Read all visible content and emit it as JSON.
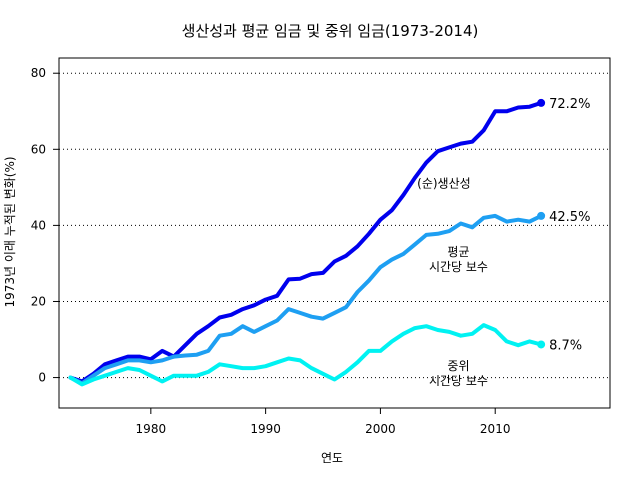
{
  "chart_data": {
    "type": "line",
    "title": "생산성과 평균 임금 및 중위 임금(1973-2014)",
    "xlabel": "연도",
    "ylabel": "1973년 이래 누적된 변화(%)",
    "xlim": [
      1972,
      2020
    ],
    "ylim": [
      -8,
      84
    ],
    "x_ticks": [
      1980,
      1990,
      2000,
      2010
    ],
    "y_ticks": [
      0,
      20,
      40,
      60,
      80
    ],
    "grid": "horizontal-dotted",
    "x": [
      1973,
      1974,
      1975,
      1976,
      1977,
      1978,
      1979,
      1980,
      1981,
      1982,
      1983,
      1984,
      1985,
      1986,
      1987,
      1988,
      1989,
      1990,
      1991,
      1992,
      1993,
      1994,
      1995,
      1996,
      1997,
      1998,
      1999,
      2000,
      2001,
      2002,
      2003,
      2004,
      2005,
      2006,
      2007,
      2008,
      2009,
      2010,
      2011,
      2012,
      2013,
      2014
    ],
    "series": [
      {
        "label_lines": [
          "(순)생산성"
        ],
        "end_label": "72.2%",
        "color": "#0000EE",
        "values": [
          0,
          -1.0,
          1.0,
          3.5,
          4.5,
          5.5,
          5.5,
          4.8,
          7.0,
          5.5,
          8.5,
          11.5,
          13.5,
          15.8,
          16.5,
          18.0,
          19.0,
          20.5,
          21.5,
          25.8,
          26.0,
          27.2,
          27.5,
          30.5,
          32.0,
          34.5,
          37.8,
          41.5,
          44.0,
          48.0,
          52.5,
          56.5,
          59.5,
          60.5,
          61.5,
          62.0,
          65.0,
          70.0,
          70.0,
          71.0,
          71.2,
          72.2
        ]
      },
      {
        "label_lines": [
          "평균",
          "시간당 보수"
        ],
        "end_label": "42.5%",
        "color": "#1E9FF2",
        "values": [
          0,
          -1.5,
          0.5,
          2.5,
          3.5,
          4.5,
          4.5,
          4.0,
          4.5,
          5.5,
          5.8,
          6.0,
          7.0,
          11.0,
          11.5,
          13.5,
          12.0,
          13.5,
          15.0,
          18.0,
          17.0,
          16.0,
          15.5,
          17.0,
          18.5,
          22.5,
          25.5,
          29.0,
          31.0,
          32.5,
          35.0,
          37.5,
          37.8,
          38.5,
          40.5,
          39.5,
          42.0,
          42.5,
          41.0,
          41.5,
          41.0,
          42.5
        ]
      },
      {
        "label_lines": [
          "중위",
          "시간당 보수"
        ],
        "end_label": "8.7%",
        "color": "#00F2F2",
        "values": [
          0,
          -1.8,
          -0.5,
          0.5,
          1.5,
          2.5,
          2.0,
          0.5,
          -1.0,
          0.5,
          0.5,
          0.5,
          1.5,
          3.5,
          3.0,
          2.5,
          2.5,
          3.0,
          4.0,
          5.0,
          4.5,
          2.5,
          1.0,
          -0.5,
          1.5,
          4.0,
          7.0,
          7.0,
          9.5,
          11.5,
          13.0,
          13.5,
          12.5,
          12.0,
          11.0,
          11.5,
          13.8,
          12.5,
          9.5,
          8.5,
          9.5,
          8.7
        ]
      }
    ]
  }
}
